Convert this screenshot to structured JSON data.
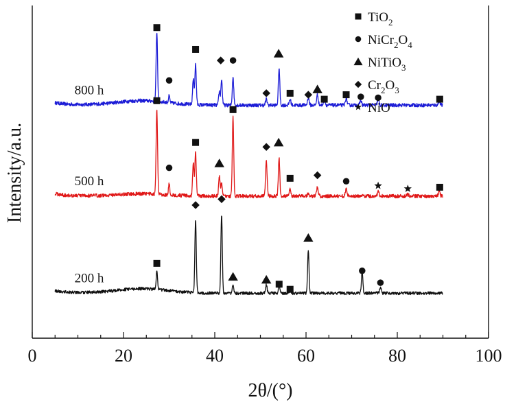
{
  "chart_data": {
    "type": "line",
    "xlabel": "2θ/(°)",
    "ylabel": "Intensity/a.u.",
    "xlim": [
      0,
      100
    ],
    "x_ticks": [
      0,
      20,
      40,
      60,
      80,
      100
    ],
    "y_ticks_shown": false,
    "grid": false,
    "legend_position": "top-right",
    "legend": [
      {
        "symbol": "square",
        "label": "TiO2",
        "label_main": "TiO",
        "sub": "2"
      },
      {
        "symbol": "circle",
        "label": "NiCr2O4",
        "parts": [
          "NiCr",
          "2",
          "O",
          "4"
        ]
      },
      {
        "symbol": "triangle",
        "label": "NiTiO3",
        "parts": [
          "NiTiO",
          "3"
        ]
      },
      {
        "symbol": "diamond",
        "label": "Cr2O3",
        "parts": [
          "Cr",
          "2",
          "O",
          "3"
        ]
      },
      {
        "symbol": "star",
        "label": "NiO",
        "parts": [
          "NiO"
        ]
      }
    ],
    "series": [
      {
        "name": "800 h",
        "color": "#1c1cd6",
        "baseline": 0.705,
        "noise": 0.006,
        "hump": 0.015,
        "peaks": [
          {
            "x": 27.3,
            "h": 0.235,
            "w": 0.22
          },
          {
            "x": 30.0,
            "h": 0.022,
            "w": 0.2
          },
          {
            "x": 35.3,
            "h": 0.085,
            "w": 0.22
          },
          {
            "x": 35.8,
            "h": 0.135,
            "w": 0.22
          },
          {
            "x": 41.0,
            "h": 0.045,
            "w": 0.22
          },
          {
            "x": 41.5,
            "h": 0.085,
            "w": 0.22
          },
          {
            "x": 44.0,
            "h": 0.095,
            "w": 0.22
          },
          {
            "x": 51.3,
            "h": 0.02,
            "w": 0.25
          },
          {
            "x": 54.1,
            "h": 0.125,
            "w": 0.22
          },
          {
            "x": 56.5,
            "h": 0.02,
            "w": 0.25
          },
          {
            "x": 60.5,
            "h": 0.025,
            "w": 0.25
          },
          {
            "x": 62.5,
            "h": 0.035,
            "w": 0.25
          },
          {
            "x": 64.0,
            "h": 0.02,
            "w": 0.25
          },
          {
            "x": 68.8,
            "h": 0.025,
            "w": 0.25
          },
          {
            "x": 72.0,
            "h": 0.016,
            "w": 0.25
          },
          {
            "x": 75.8,
            "h": 0.018,
            "w": 0.25
          },
          {
            "x": 89.2,
            "h": 0.015,
            "w": 0.25
          }
        ],
        "markers": [
          {
            "x": 27.3,
            "y": 0.965,
            "symbol": "square"
          },
          {
            "x": 30.0,
            "y": 0.788,
            "symbol": "circle"
          },
          {
            "x": 35.8,
            "y": 0.892,
            "symbol": "square"
          },
          {
            "x": 41.3,
            "y": 0.855,
            "symbol": "diamond"
          },
          {
            "x": 44.0,
            "y": 0.855,
            "symbol": "circle"
          },
          {
            "x": 51.3,
            "y": 0.745,
            "symbol": "diamond"
          },
          {
            "x": 54.0,
            "y": 0.878,
            "symbol": "triangle"
          },
          {
            "x": 56.5,
            "y": 0.745,
            "symbol": "square"
          },
          {
            "x": 60.5,
            "y": 0.74,
            "symbol": "diamond"
          },
          {
            "x": 62.5,
            "y": 0.758,
            "symbol": "triangle"
          },
          {
            "x": 64.0,
            "y": 0.725,
            "symbol": "square"
          },
          {
            "x": 68.8,
            "y": 0.74,
            "symbol": "square"
          },
          {
            "x": 72.0,
            "y": 0.733,
            "symbol": "circle"
          },
          {
            "x": 75.8,
            "y": 0.73,
            "symbol": "circle"
          },
          {
            "x": 89.3,
            "y": 0.725,
            "symbol": "square"
          }
        ]
      },
      {
        "name": "500 h",
        "color": "#e01818",
        "baseline": 0.4,
        "noise": 0.006,
        "hump": 0.008,
        "peaks": [
          {
            "x": 27.3,
            "h": 0.285,
            "w": 0.22
          },
          {
            "x": 30.0,
            "h": 0.035,
            "w": 0.2
          },
          {
            "x": 35.3,
            "h": 0.11,
            "w": 0.22
          },
          {
            "x": 35.8,
            "h": 0.148,
            "w": 0.22
          },
          {
            "x": 41.0,
            "h": 0.07,
            "w": 0.22
          },
          {
            "x": 41.5,
            "h": 0.045,
            "w": 0.22
          },
          {
            "x": 44.0,
            "h": 0.265,
            "w": 0.22
          },
          {
            "x": 51.3,
            "h": 0.115,
            "w": 0.25
          },
          {
            "x": 54.1,
            "h": 0.13,
            "w": 0.22
          },
          {
            "x": 56.5,
            "h": 0.025,
            "w": 0.25
          },
          {
            "x": 60.5,
            "h": 0.01,
            "w": 0.25
          },
          {
            "x": 62.5,
            "h": 0.03,
            "w": 0.25
          },
          {
            "x": 68.8,
            "h": 0.025,
            "w": 0.25
          },
          {
            "x": 75.8,
            "h": 0.015,
            "w": 0.25
          },
          {
            "x": 82.3,
            "h": 0.008,
            "w": 0.25
          },
          {
            "x": 89.2,
            "h": 0.018,
            "w": 0.25
          }
        ],
        "markers": [
          {
            "x": 27.3,
            "y": 0.72,
            "symbol": "square"
          },
          {
            "x": 30.0,
            "y": 0.495,
            "symbol": "circle"
          },
          {
            "x": 35.8,
            "y": 0.58,
            "symbol": "square"
          },
          {
            "x": 41.0,
            "y": 0.51,
            "symbol": "triangle"
          },
          {
            "x": 44.0,
            "y": 0.69,
            "symbol": "square"
          },
          {
            "x": 51.3,
            "y": 0.565,
            "symbol": "diamond"
          },
          {
            "x": 54.0,
            "y": 0.58,
            "symbol": "triangle"
          },
          {
            "x": 56.5,
            "y": 0.46,
            "symbol": "square"
          },
          {
            "x": 62.5,
            "y": 0.47,
            "symbol": "diamond"
          },
          {
            "x": 68.8,
            "y": 0.45,
            "symbol": "circle"
          },
          {
            "x": 75.8,
            "y": 0.435,
            "symbol": "star"
          },
          {
            "x": 82.3,
            "y": 0.425,
            "symbol": "star"
          },
          {
            "x": 89.3,
            "y": 0.43,
            "symbol": "square"
          }
        ]
      },
      {
        "name": "200 h",
        "color": "#111111",
        "baseline": 0.075,
        "noise": 0.005,
        "hump": 0.015,
        "peaks": [
          {
            "x": 27.3,
            "h": 0.06,
            "w": 0.22
          },
          {
            "x": 35.8,
            "h": 0.245,
            "w": 0.22
          },
          {
            "x": 41.5,
            "h": 0.265,
            "w": 0.22
          },
          {
            "x": 44.0,
            "h": 0.03,
            "w": 0.22
          },
          {
            "x": 51.3,
            "h": 0.028,
            "w": 0.25
          },
          {
            "x": 54.1,
            "h": 0.025,
            "w": 0.22
          },
          {
            "x": 56.5,
            "h": 0.01,
            "w": 0.25
          },
          {
            "x": 60.5,
            "h": 0.14,
            "w": 0.22
          },
          {
            "x": 72.3,
            "h": 0.07,
            "w": 0.22
          },
          {
            "x": 76.3,
            "h": 0.02,
            "w": 0.25
          }
        ],
        "markers": [
          {
            "x": 27.3,
            "y": 0.175,
            "symbol": "square"
          },
          {
            "x": 35.8,
            "y": 0.37,
            "symbol": "diamond"
          },
          {
            "x": 41.5,
            "y": 0.39,
            "symbol": "diamond"
          },
          {
            "x": 44.0,
            "y": 0.13,
            "symbol": "triangle"
          },
          {
            "x": 51.3,
            "y": 0.12,
            "symbol": "triangle"
          },
          {
            "x": 54.1,
            "y": 0.105,
            "symbol": "square"
          },
          {
            "x": 56.5,
            "y": 0.088,
            "symbol": "square"
          },
          {
            "x": 60.5,
            "y": 0.26,
            "symbol": "triangle"
          },
          {
            "x": 72.3,
            "y": 0.15,
            "symbol": "circle"
          },
          {
            "x": 76.3,
            "y": 0.11,
            "symbol": "circle"
          }
        ]
      }
    ]
  }
}
